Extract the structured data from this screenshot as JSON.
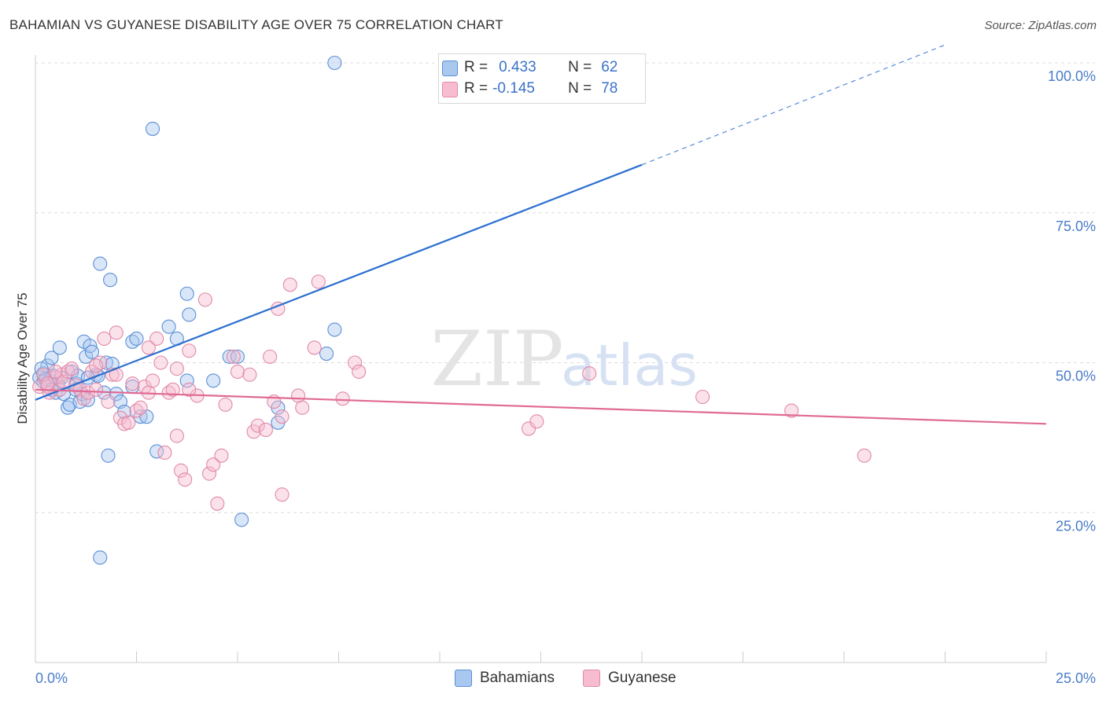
{
  "title": "BAHAMIAN VS GUYANESE DISABILITY AGE OVER 75 CORRELATION CHART",
  "source": "Source: ZipAtlas.com",
  "watermark": {
    "zip": "ZIP",
    "atlas": "atlas"
  },
  "colors": {
    "bahamians_fill": "#a9c8f0",
    "bahamians_stroke": "#5b8fd6",
    "bahamians_line": "#2b6fcf",
    "guyanese_fill": "#f7bcd0",
    "guyanese_stroke": "#e08aa8",
    "guyanese_line": "#e06a95",
    "tick_label": "#4a7cc9"
  },
  "legend": {
    "r_label": "R =",
    "n_label": "N =",
    "rows": [
      {
        "series": "Bahamians",
        "r": "0.433",
        "n": "62"
      },
      {
        "series": "Guyanese",
        "r": "-0.145",
        "n": "78"
      }
    ]
  },
  "bottom_legend": [
    "Bahamians",
    "Guyanese"
  ],
  "chart_data": {
    "type": "scatter",
    "title": "BAHAMIAN VS GUYANESE DISABILITY AGE OVER 75 CORRELATION CHART",
    "xlabel": "",
    "ylabel": "Disability Age Over 75",
    "xlim": [
      0,
      25
    ],
    "ylim": [
      0,
      102
    ],
    "x_tick_labels": [
      "0.0%",
      "25.0%"
    ],
    "y_ticks": [
      25,
      50,
      75,
      100
    ],
    "y_tick_labels": [
      "25.0%",
      "50.0%",
      "75.0%",
      "100.0%"
    ],
    "grid": true,
    "series": [
      {
        "name": "Bahamians",
        "trend": {
          "x0": 0,
          "y0": 43.8,
          "x1": 15,
          "y1": 83.0,
          "dashed_to_x": 22.5,
          "dashed_to_y": 103
        },
        "points": [
          [
            0.1,
            47.5
          ],
          [
            0.2,
            46.8
          ],
          [
            0.2,
            48.2
          ],
          [
            0.3,
            49.5
          ],
          [
            0.35,
            47.0
          ],
          [
            0.4,
            50.8
          ],
          [
            0.45,
            47.8
          ],
          [
            0.5,
            45.0
          ],
          [
            0.6,
            52.5
          ],
          [
            0.65,
            47.5
          ],
          [
            0.8,
            42.5
          ],
          [
            0.85,
            43.0
          ],
          [
            0.9,
            48.5
          ],
          [
            1.0,
            46.5
          ],
          [
            1.05,
            47.8
          ],
          [
            1.1,
            43.5
          ],
          [
            1.15,
            44.8
          ],
          [
            1.2,
            53.5
          ],
          [
            1.25,
            51.0
          ],
          [
            1.3,
            43.8
          ],
          [
            1.35,
            52.8
          ],
          [
            1.4,
            51.8
          ],
          [
            1.5,
            48.0
          ],
          [
            1.55,
            47.8
          ],
          [
            1.6,
            66.5
          ],
          [
            1.7,
            45.0
          ],
          [
            1.75,
            50.0
          ],
          [
            1.85,
            63.8
          ],
          [
            1.9,
            49.8
          ],
          [
            2.0,
            44.8
          ],
          [
            2.1,
            43.5
          ],
          [
            2.2,
            41.8
          ],
          [
            2.4,
            53.5
          ],
          [
            2.5,
            54.0
          ],
          [
            2.6,
            41.0
          ],
          [
            2.75,
            41.0
          ],
          [
            2.9,
            89.0
          ],
          [
            3.0,
            35.2
          ],
          [
            3.3,
            56.0
          ],
          [
            3.5,
            54.0
          ],
          [
            3.75,
            47.0
          ],
          [
            3.75,
            61.5
          ],
          [
            3.8,
            58.0
          ],
          [
            4.4,
            47.0
          ],
          [
            4.8,
            51.0
          ],
          [
            5.0,
            51.0
          ],
          [
            5.1,
            23.8
          ],
          [
            6.0,
            42.5
          ],
          [
            6.0,
            40.0
          ],
          [
            7.2,
            51.5
          ],
          [
            7.4,
            55.5
          ],
          [
            7.4,
            100
          ],
          [
            1.8,
            34.5
          ],
          [
            1.6,
            17.5
          ],
          [
            0.55,
            46.5
          ],
          [
            0.7,
            44.8
          ],
          [
            1.0,
            45.5
          ],
          [
            0.15,
            49.0
          ],
          [
            0.25,
            47.2
          ],
          [
            0.4,
            45.5
          ],
          [
            1.3,
            47.5
          ],
          [
            2.4,
            46.0
          ]
        ]
      },
      {
        "name": "Guyanese",
        "trend": {
          "x0": 0,
          "y0": 45.5,
          "x1": 25,
          "y1": 39.8
        },
        "points": [
          [
            0.1,
            46.0
          ],
          [
            0.2,
            48.0
          ],
          [
            0.3,
            46.0
          ],
          [
            0.35,
            45.0
          ],
          [
            0.5,
            47.5
          ],
          [
            0.6,
            45.5
          ],
          [
            0.65,
            48.0
          ],
          [
            0.7,
            46.8
          ],
          [
            0.8,
            48.5
          ],
          [
            0.9,
            49.0
          ],
          [
            1.0,
            46.2
          ],
          [
            1.1,
            45.5
          ],
          [
            1.2,
            44.0
          ],
          [
            1.3,
            45.0
          ],
          [
            1.4,
            48.5
          ],
          [
            1.5,
            45.5
          ],
          [
            1.6,
            50.0
          ],
          [
            1.7,
            54.0
          ],
          [
            1.8,
            43.5
          ],
          [
            1.9,
            48.0
          ],
          [
            2.0,
            55.0
          ],
          [
            2.1,
            40.8
          ],
          [
            2.2,
            39.8
          ],
          [
            2.3,
            40.0
          ],
          [
            2.4,
            46.5
          ],
          [
            2.5,
            42.0
          ],
          [
            2.6,
            42.5
          ],
          [
            2.7,
            46.0
          ],
          [
            2.8,
            45.0
          ],
          [
            2.9,
            47.0
          ],
          [
            3.0,
            54.0
          ],
          [
            3.1,
            50.0
          ],
          [
            3.2,
            35.0
          ],
          [
            3.3,
            45.0
          ],
          [
            3.4,
            45.5
          ],
          [
            3.5,
            49.0
          ],
          [
            3.5,
            37.8
          ],
          [
            3.6,
            32.0
          ],
          [
            3.7,
            30.5
          ],
          [
            3.8,
            52.0
          ],
          [
            4.0,
            44.5
          ],
          [
            4.2,
            60.5
          ],
          [
            4.3,
            31.5
          ],
          [
            4.4,
            33.0
          ],
          [
            4.5,
            26.5
          ],
          [
            4.6,
            34.5
          ],
          [
            4.7,
            43.0
          ],
          [
            4.9,
            51.0
          ],
          [
            5.0,
            48.5
          ],
          [
            5.3,
            48.0
          ],
          [
            5.4,
            38.5
          ],
          [
            5.5,
            39.5
          ],
          [
            5.7,
            38.8
          ],
          [
            5.8,
            51.0
          ],
          [
            6.1,
            41.0
          ],
          [
            6.1,
            28.0
          ],
          [
            6.3,
            63.0
          ],
          [
            6.5,
            44.5
          ],
          [
            6.6,
            42.5
          ],
          [
            6.9,
            52.5
          ],
          [
            7.0,
            63.5
          ],
          [
            7.6,
            44.0
          ],
          [
            7.9,
            50.0
          ],
          [
            8.0,
            48.5
          ],
          [
            6.0,
            59.0
          ],
          [
            3.8,
            45.5
          ],
          [
            2.0,
            48.0
          ],
          [
            1.5,
            49.5
          ],
          [
            0.5,
            48.5
          ],
          [
            0.3,
            46.5
          ],
          [
            12.2,
            39.0
          ],
          [
            12.4,
            40.2
          ],
          [
            13.7,
            48.2
          ],
          [
            16.5,
            44.3
          ],
          [
            18.7,
            42.0
          ],
          [
            20.5,
            34.5
          ],
          [
            5.9,
            43.5
          ],
          [
            2.8,
            52.5
          ]
        ]
      }
    ]
  }
}
